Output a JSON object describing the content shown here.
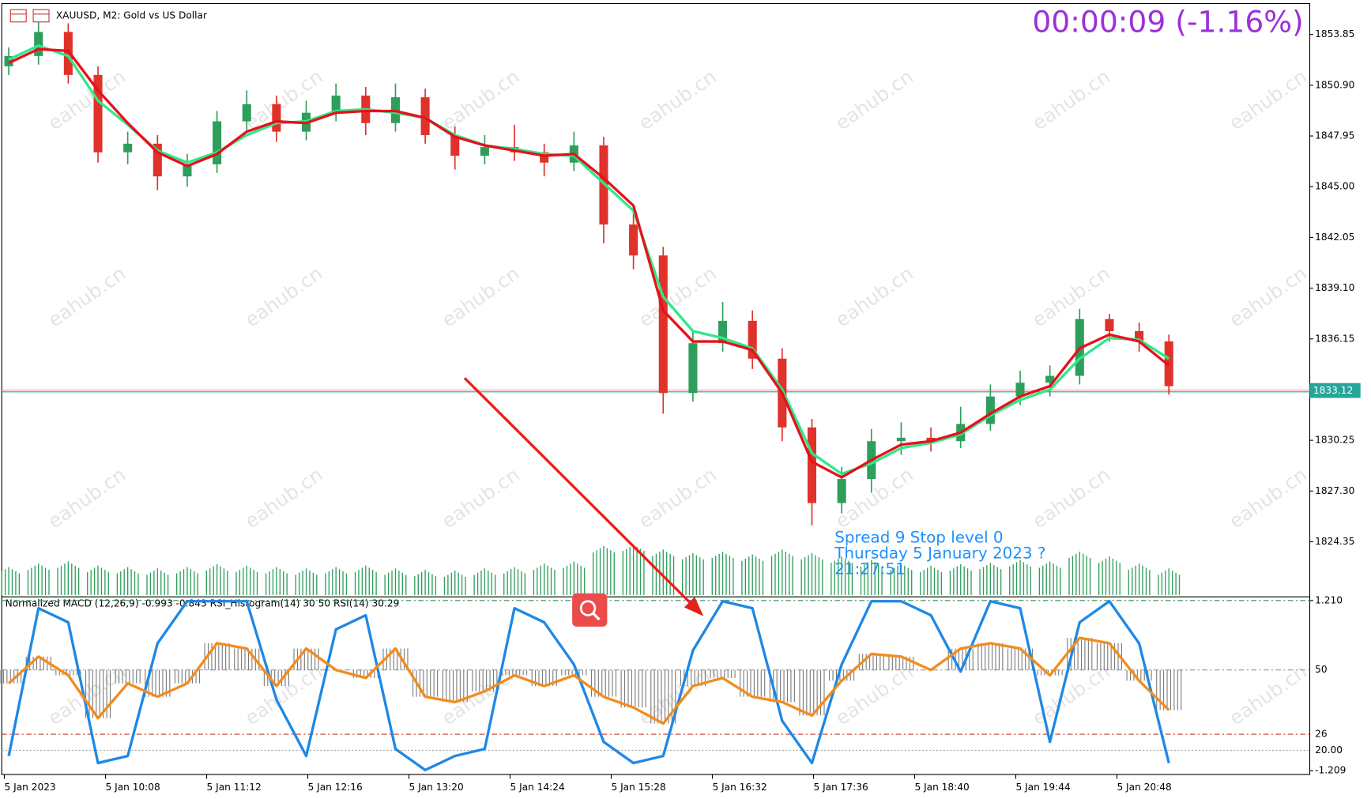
{
  "chart_data": [
    {
      "type": "candlestick",
      "title": "XAUUSD, M2:  Gold vs US Dollar",
      "countdown": "00:00:09 (-1.16%)",
      "info_lines": [
        "Spread  9   Stop level  0",
        "Thursday 5 January 2023 ?",
        "21:27:51"
      ],
      "watermark": "eahub.cn",
      "current_price": 1833.12,
      "up_color": "#2e9e5b",
      "down_color": "#e0312b",
      "open": [
        1852.0,
        1852.6,
        1854.0,
        1851.5,
        1847.0,
        1847.5,
        1845.6,
        1846.3,
        1848.8,
        1849.8,
        1848.2,
        1849.3,
        1850.3,
        1848.7,
        1850.2,
        1848.0,
        1846.8,
        1847.3,
        1847.0,
        1846.4,
        1847.4,
        1842.8,
        1841.0,
        1833.0,
        1835.9,
        1837.2,
        1835.0,
        1831.0,
        1826.6,
        1828.0,
        1830.2,
        1830.4,
        1830.2,
        1831.2,
        1832.8,
        1833.6,
        1834.0,
        1837.3,
        1836.6,
        1836.0
      ],
      "high": [
        1853.1,
        1854.6,
        1854.5,
        1852.0,
        1848.2,
        1848.0,
        1846.9,
        1849.4,
        1850.6,
        1850.3,
        1850.0,
        1851.0,
        1850.8,
        1851.0,
        1850.7,
        1848.5,
        1848.0,
        1848.6,
        1847.5,
        1848.2,
        1847.9,
        1843.8,
        1841.5,
        1836.6,
        1838.3,
        1837.8,
        1835.6,
        1831.5,
        1828.7,
        1830.9,
        1831.3,
        1831.0,
        1832.2,
        1833.5,
        1834.3,
        1834.6,
        1837.9,
        1837.6,
        1837.1,
        1836.4
      ],
      "low": [
        1851.5,
        1852.1,
        1851.0,
        1846.4,
        1846.3,
        1844.8,
        1845.0,
        1845.8,
        1848.3,
        1847.6,
        1847.7,
        1848.8,
        1848.0,
        1848.2,
        1847.5,
        1846.0,
        1846.3,
        1846.5,
        1845.6,
        1845.9,
        1841.7,
        1840.2,
        1831.8,
        1832.5,
        1835.4,
        1834.4,
        1830.2,
        1825.3,
        1826.0,
        1827.2,
        1829.4,
        1829.6,
        1829.8,
        1830.8,
        1832.3,
        1832.8,
        1833.5,
        1836.0,
        1835.4,
        1832.9
      ],
      "close": [
        1852.6,
        1854.0,
        1851.5,
        1847.0,
        1847.5,
        1845.6,
        1846.3,
        1848.8,
        1849.8,
        1848.2,
        1849.3,
        1850.3,
        1848.7,
        1850.2,
        1848.0,
        1846.8,
        1847.3,
        1847.0,
        1846.4,
        1847.4,
        1842.8,
        1841.0,
        1833.0,
        1835.9,
        1837.2,
        1835.0,
        1831.0,
        1826.6,
        1828.0,
        1830.2,
        1830.4,
        1830.2,
        1831.2,
        1832.8,
        1833.6,
        1834.0,
        1837.3,
        1836.6,
        1836.0,
        1833.4
      ],
      "series": [
        {
          "color": "#2ee88a",
          "values": [
            1852.4,
            1853.2,
            1852.6,
            1850.0,
            1848.6,
            1847.1,
            1846.4,
            1847.0,
            1848.0,
            1848.7,
            1848.8,
            1849.4,
            1849.5,
            1849.3,
            1849.0,
            1848.0,
            1847.4,
            1847.2,
            1846.9,
            1846.8,
            1845.2,
            1843.6,
            1838.6,
            1836.6,
            1836.2,
            1835.6,
            1833.2,
            1829.5,
            1828.3,
            1828.9,
            1829.8,
            1830.1,
            1830.6,
            1831.7,
            1832.6,
            1833.2,
            1835.0,
            1836.2,
            1836.1,
            1835.0
          ]
        },
        {
          "color": "#e8101a",
          "values": [
            1852.2,
            1853.0,
            1852.9,
            1850.6,
            1848.7,
            1847.0,
            1846.2,
            1846.9,
            1848.2,
            1848.8,
            1848.7,
            1849.3,
            1849.4,
            1849.4,
            1849.0,
            1847.9,
            1847.4,
            1847.1,
            1846.8,
            1846.9,
            1845.5,
            1843.9,
            1837.8,
            1836.0,
            1836.0,
            1835.5,
            1833.0,
            1829.0,
            1828.1,
            1829.1,
            1830.0,
            1830.2,
            1830.7,
            1831.8,
            1832.8,
            1833.4,
            1835.6,
            1836.4,
            1836.0,
            1834.6
          ]
        }
      ],
      "volume": {
        "color": "#2e9e5b",
        "ylim": [
          0,
          100
        ],
        "values": [
          40,
          45,
          48,
          42,
          40,
          38,
          40,
          44,
          42,
          40,
          38,
          40,
          42,
          38,
          36,
          35,
          38,
          40,
          45,
          48,
          70,
          72,
          65,
          60,
          62,
          58,
          65,
          60,
          55,
          50,
          45,
          42,
          44,
          46,
          50,
          48,
          62,
          55,
          45,
          38
        ]
      },
      "ylim": [
        1821.25,
        1855.6
      ],
      "yticks": [
        1853.85,
        {
          "value": 1850.9,
          "label": "1850.90"
        },
        1847.95,
        {
          "value": 1845.0,
          "label": "1845.00"
        },
        1842.05,
        {
          "value": 1839.1,
          "label": "1839.10"
        },
        1836.15,
        1830.25,
        {
          "value": 1827.3,
          "label": "1827.30"
        },
        1824.35
      ],
      "time_labels": [
        "5 Jan 2023",
        "5 Jan 10:08",
        "5 Jan 11:12",
        "5 Jan 12:16",
        "5 Jan 13:20",
        "5 Jan 14:24",
        "5 Jan 15:28",
        "5 Jan 16:32",
        "5 Jan 17:36",
        "5 Jan 18:40",
        "5 Jan 19:44",
        "5 Jan 20:48"
      ]
    },
    {
      "type": "indicator",
      "title": "Normalized MACD (12,26,9) -0.993 -0.843 RSI_Histogram(14) 30 50 RSI(14) 30.29",
      "ylim": [
        10,
        77
      ],
      "yticks": [
        50,
        26,
        {
          "value": 20,
          "label": "20.00"
        }
      ],
      "y2lim": [
        -1.3,
        1.25
      ],
      "y2ticks": [
        {
          "value": 1.21,
          "label": "1.210"
        },
        {
          "value": -1.209,
          "label": "-1.209"
        }
      ],
      "series": [
        {
          "style": "bar",
          "color": "#7a7a7a",
          "values": [
            45,
            55,
            48,
            32,
            45,
            40,
            45,
            60,
            58,
            44,
            58,
            50,
            47,
            58,
            40,
            38,
            42,
            48,
            44,
            48,
            40,
            36,
            30,
            44,
            47,
            40,
            38,
            33,
            46,
            56,
            55,
            50,
            58,
            60,
            58,
            48,
            62,
            60,
            46,
            35
          ]
        },
        {
          "style": "line",
          "color": "#1e88e5",
          "axis": "y2",
          "values": [
            -1.0,
            1.1,
            0.9,
            -1.1,
            -1.0,
            0.6,
            1.2,
            1.2,
            1.2,
            -0.2,
            -1.0,
            0.8,
            1.0,
            -0.9,
            -1.2,
            -1.0,
            -0.9,
            1.1,
            0.9,
            0.3,
            -0.8,
            -1.1,
            -1.0,
            0.5,
            1.2,
            1.1,
            -0.5,
            -1.1,
            0.3,
            1.2,
            1.2,
            1.0,
            0.2,
            1.2,
            1.1,
            -0.8,
            0.9,
            1.2,
            0.6,
            -1.1
          ]
        },
        {
          "style": "line",
          "color": "#f28c1e",
          "values": [
            45,
            55,
            48,
            32,
            45,
            40,
            45,
            60,
            58,
            44,
            58,
            50,
            47,
            58,
            40,
            38,
            42,
            48,
            44,
            48,
            40,
            36,
            30,
            44,
            47,
            40,
            38,
            33,
            46,
            56,
            55,
            50,
            58,
            60,
            58,
            48,
            62,
            60,
            46,
            35
          ]
        }
      ]
    }
  ]
}
